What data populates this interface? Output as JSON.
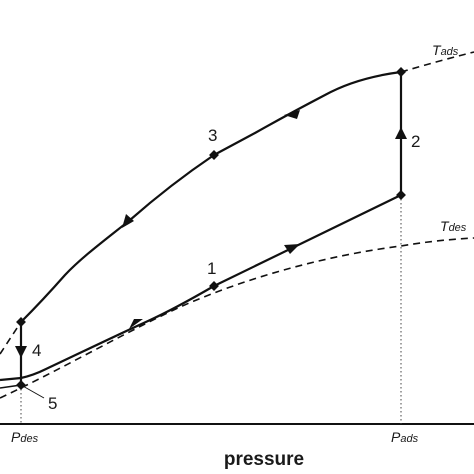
{
  "axis": {
    "x_title": "pressure"
  },
  "ticks": {
    "p_des": {
      "main": "P",
      "sub": "des"
    },
    "p_ads": {
      "main": "P",
      "sub": "ads"
    }
  },
  "isotherms": {
    "t_ads": {
      "main": "T",
      "sub": "ads"
    },
    "t_des": {
      "main": "T",
      "sub": "des"
    }
  },
  "steps": {
    "s1": "1",
    "s2": "2",
    "s3": "3",
    "s4": "4",
    "s5": "5"
  },
  "colors": {
    "line": "#111111",
    "background": "#ffffff"
  }
}
